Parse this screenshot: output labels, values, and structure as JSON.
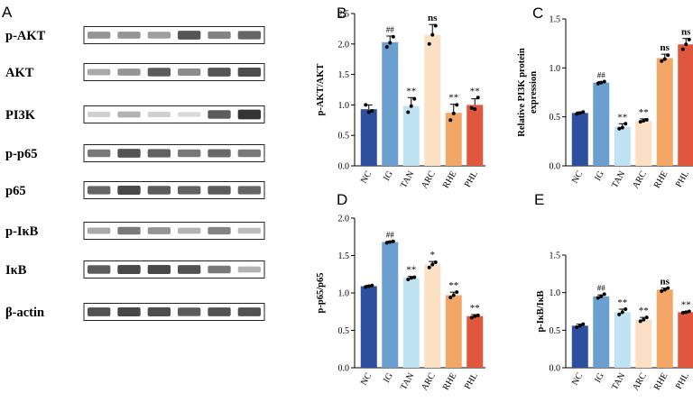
{
  "western_blot": {
    "panel_letter": "A",
    "rows": [
      {
        "label": "p-AKT",
        "bands": [
          0.45,
          0.45,
          0.4,
          0.78,
          0.55,
          0.7
        ]
      },
      {
        "label": "AKT",
        "bands": [
          0.35,
          0.45,
          0.75,
          0.5,
          0.78,
          0.82
        ]
      },
      {
        "label": "PI3K",
        "bands": [
          0.15,
          0.3,
          0.15,
          0.1,
          0.75,
          0.95
        ]
      },
      {
        "label": "p-p65",
        "bands": [
          0.6,
          0.78,
          0.72,
          0.6,
          0.68,
          0.6
        ]
      },
      {
        "label": "p65",
        "bands": [
          0.7,
          0.85,
          0.75,
          0.72,
          0.75,
          0.7
        ]
      },
      {
        "label": "p-IκB",
        "bands": [
          0.35,
          0.6,
          0.45,
          0.3,
          0.55,
          0.25
        ]
      },
      {
        "label": "IκB",
        "bands": [
          0.75,
          0.85,
          0.85,
          0.8,
          0.6,
          0.3
        ]
      },
      {
        "label": "β-actin",
        "bands": [
          0.8,
          0.85,
          0.82,
          0.75,
          0.8,
          0.8
        ]
      }
    ]
  },
  "categories": [
    "NC",
    "IG",
    "TAN",
    "ARC",
    "RHE",
    "PHL"
  ],
  "bar_colors": [
    "#2d4f9e",
    "#6b9fd0",
    "#bfe3f2",
    "#fbe0c4",
    "#f2a766",
    "#e0573d"
  ],
  "chart_data": [
    {
      "type": "bar",
      "panel": "B",
      "ylabel": "p-AKT/AKT",
      "ylim": [
        0,
        2.5
      ],
      "yticks": [
        "0.0",
        "0.5",
        "1.0",
        "1.5",
        "2.0",
        "2.5"
      ],
      "categories": [
        "NC",
        "IG",
        "TAN",
        "ARC",
        "RHE",
        "PHL"
      ],
      "values": [
        0.93,
        2.03,
        0.98,
        2.15,
        0.87,
        1.0
      ],
      "errors": [
        0.07,
        0.1,
        0.14,
        0.17,
        0.14,
        0.1
      ],
      "points": [
        [
          1.0,
          0.88,
          0.9
        ],
        [
          1.95,
          2.02,
          2.12
        ],
        [
          0.88,
          0.98,
          1.1
        ],
        [
          2.0,
          2.15,
          2.3
        ],
        [
          0.75,
          0.86,
          1.0
        ],
        [
          0.95,
          0.93,
          1.12
        ]
      ],
      "annotations": [
        "",
        "##",
        "**",
        "ns",
        "**",
        "**"
      ]
    },
    {
      "type": "bar",
      "panel": "C",
      "ylabel": "Relative PI3K protein expression",
      "ylim": [
        0,
        1.5
      ],
      "yticks": [
        "0.0",
        "0.5",
        "1.0",
        "1.5"
      ],
      "categories": [
        "NC",
        "IG",
        "TAN",
        "ARC",
        "RHE",
        "PHL"
      ],
      "values": [
        0.54,
        0.85,
        0.4,
        0.46,
        1.1,
        1.24
      ],
      "errors": [
        0.01,
        0.01,
        0.03,
        0.02,
        0.04,
        0.06
      ],
      "points": [
        [
          0.53,
          0.54,
          0.55
        ],
        [
          0.84,
          0.85,
          0.86
        ],
        [
          0.38,
          0.39,
          0.43
        ],
        [
          0.45,
          0.46,
          0.47
        ],
        [
          1.07,
          1.09,
          1.13
        ],
        [
          1.19,
          1.24,
          1.29
        ]
      ],
      "annotations": [
        "",
        "##",
        "**",
        "**",
        "ns",
        "ns"
      ]
    },
    {
      "type": "bar",
      "panel": "D",
      "ylabel": "p-p65/p65",
      "ylim": [
        0,
        2.0
      ],
      "yticks": [
        "0.0",
        "0.5",
        "1.0",
        "1.5",
        "2.0"
      ],
      "categories": [
        "NC",
        "IG",
        "TAN",
        "ARC",
        "RHE",
        "PHL"
      ],
      "values": [
        1.09,
        1.68,
        1.2,
        1.38,
        0.97,
        0.69
      ],
      "errors": [
        0.01,
        0.01,
        0.02,
        0.04,
        0.04,
        0.02
      ],
      "points": [
        [
          1.08,
          1.09,
          1.1
        ],
        [
          1.67,
          1.68,
          1.69
        ],
        [
          1.18,
          1.2,
          1.21
        ],
        [
          1.34,
          1.38,
          1.41
        ],
        [
          0.94,
          0.97,
          1.01
        ],
        [
          0.67,
          0.69,
          0.7
        ]
      ],
      "annotations": [
        "",
        "##",
        "**",
        "*",
        "**",
        "**"
      ]
    },
    {
      "type": "bar",
      "panel": "E",
      "ylabel": "p-IκB/IκB",
      "ylim": [
        0,
        1.5
      ],
      "yticks": [
        "0.0",
        "0.5",
        "1.0",
        "1.5"
      ],
      "categories": [
        "NC",
        "IG",
        "TAN",
        "ARC",
        "RHE",
        "PHL"
      ],
      "values": [
        0.56,
        0.95,
        0.74,
        0.64,
        1.04,
        0.74
      ],
      "errors": [
        0.02,
        0.02,
        0.04,
        0.03,
        0.02,
        0.01
      ],
      "points": [
        [
          0.54,
          0.56,
          0.58
        ],
        [
          0.93,
          0.95,
          0.98
        ],
        [
          0.71,
          0.74,
          0.78
        ],
        [
          0.62,
          0.64,
          0.67
        ],
        [
          1.02,
          1.04,
          1.06
        ],
        [
          0.73,
          0.74,
          0.75
        ]
      ],
      "annotations": [
        "",
        "##",
        "**",
        "**",
        "ns",
        "**"
      ]
    }
  ]
}
